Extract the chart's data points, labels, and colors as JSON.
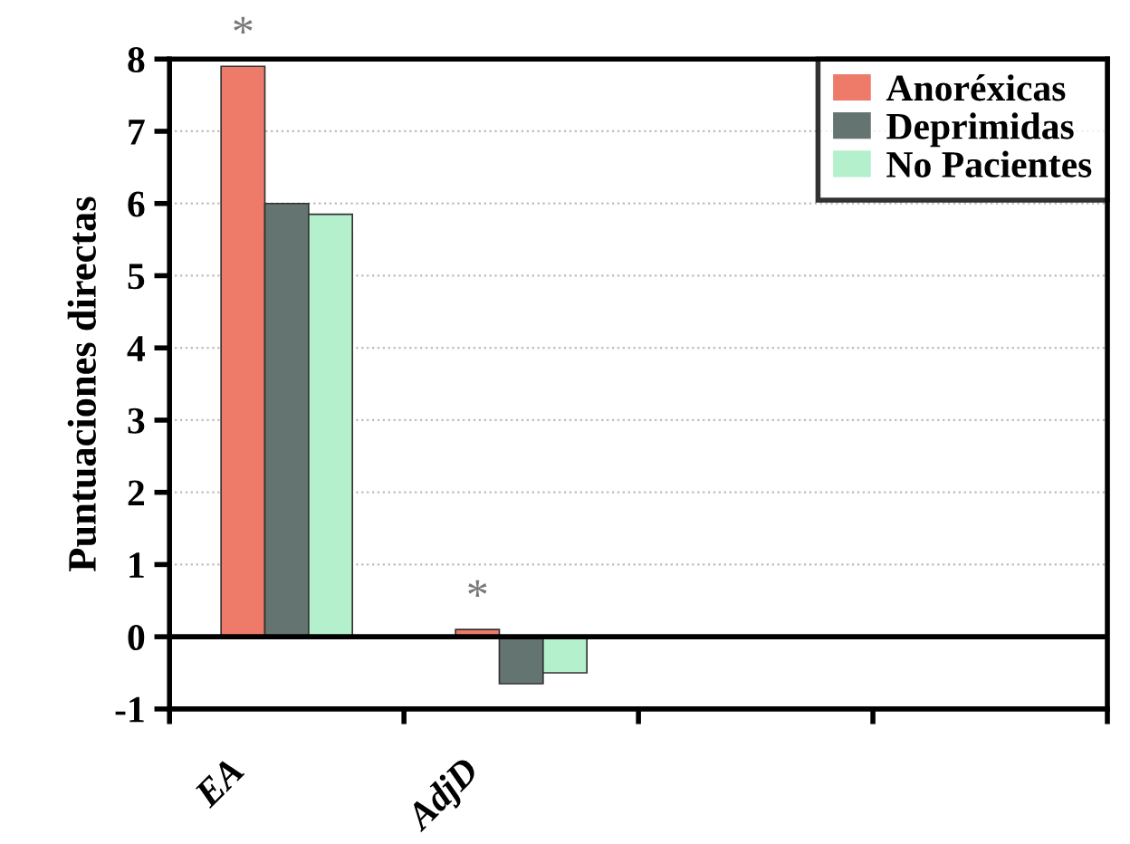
{
  "chart_data": {
    "type": "bar",
    "ylabel": "Puntuaciones directas",
    "categories": [
      "EA",
      "AdjD",
      null,
      null
    ],
    "series": [
      {
        "name": "Anoréxicas",
        "color": "#ee7a6a",
        "values": [
          7.9,
          0.1,
          null,
          null
        ]
      },
      {
        "name": "Deprimidas",
        "color": "#647470",
        "values": [
          6.0,
          -0.65,
          null,
          null
        ]
      },
      {
        "name": "No Pacientes",
        "color": "#b4f0cc",
        "values": [
          5.85,
          -0.5,
          null,
          null
        ]
      }
    ],
    "annotations": [
      "*",
      "*"
    ],
    "ylim": [
      -1,
      8
    ],
    "yticks": [
      -1,
      0,
      1,
      2,
      3,
      4,
      5,
      6,
      7,
      8
    ],
    "grid": "y",
    "legend": "top right"
  }
}
